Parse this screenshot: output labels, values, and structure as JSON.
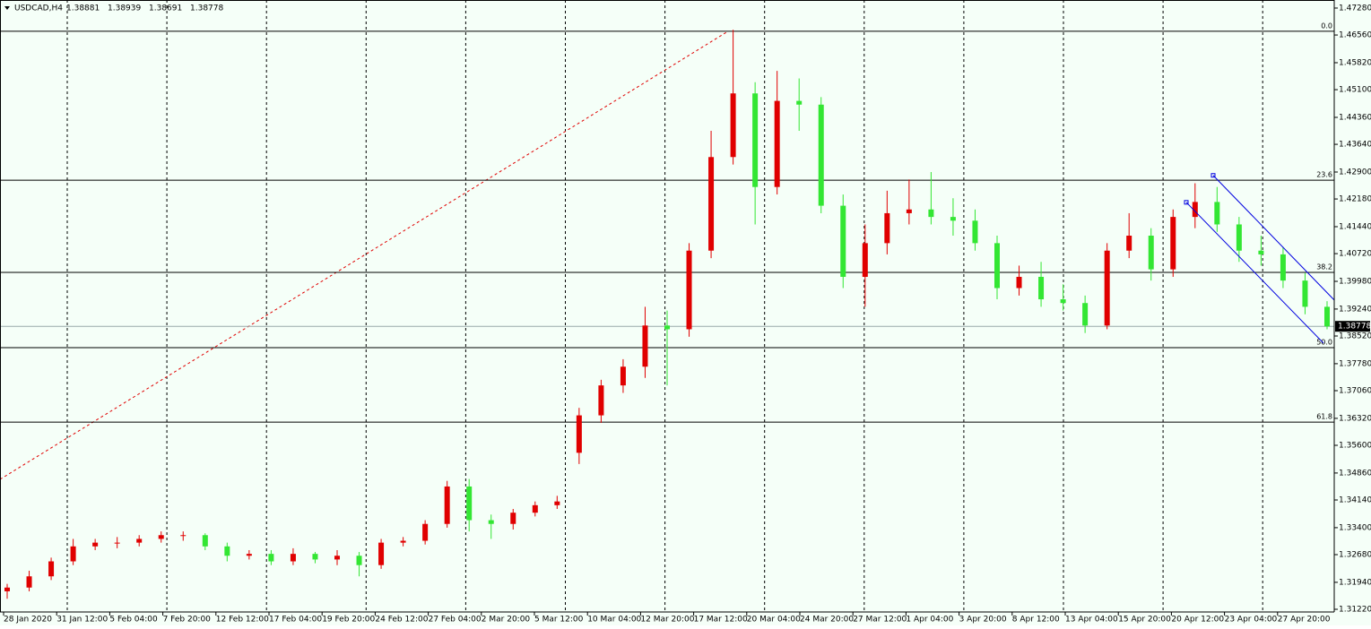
{
  "chart_data": {
    "type": "candlestick",
    "symbol": "USDCAD,H4",
    "info_values": [
      1.38881,
      1.38939,
      1.38691,
      1.38778
    ],
    "last_price": 1.38778,
    "up_color": "#e00000",
    "down_color": "#33e633",
    "ylim": [
      1.31148,
      1.47495
    ],
    "yticks": [
      {
        "value": 1.4728,
        "label": "1.47280"
      },
      {
        "value": 1.4656,
        "label": "1.46560"
      },
      {
        "value": 1.4582,
        "label": "1.45820"
      },
      {
        "value": 1.451,
        "label": "1.45100"
      },
      {
        "value": 1.4436,
        "label": "1.44360"
      },
      {
        "value": 1.4364,
        "label": "1.43640"
      },
      {
        "value": 1.429,
        "label": "1.42900"
      },
      {
        "value": 1.4218,
        "label": "1.42180"
      },
      {
        "value": 1.4144,
        "label": "1.41440"
      },
      {
        "value": 1.4072,
        "label": "1.40720"
      },
      {
        "value": 1.3998,
        "label": "1.39980"
      },
      {
        "value": 1.3924,
        "label": "1.39240"
      },
      {
        "value": 1.3852,
        "label": "1.38520"
      },
      {
        "value": 1.3778,
        "label": "1.37780"
      },
      {
        "value": 1.3706,
        "label": "1.37060"
      },
      {
        "value": 1.3632,
        "label": "1.36320"
      },
      {
        "value": 1.356,
        "label": "1.35600"
      },
      {
        "value": 1.3486,
        "label": "1.34860"
      },
      {
        "value": 1.3414,
        "label": "1.34140"
      },
      {
        "value": 1.334,
        "label": "1.33400"
      },
      {
        "value": 1.3268,
        "label": "1.32680"
      },
      {
        "value": 1.3194,
        "label": "1.31940"
      },
      {
        "value": 1.3122,
        "label": "1.31220"
      }
    ],
    "time_labels": [
      "28 Jan 2020",
      "31 Jan 12:00",
      "5 Feb 04:00",
      "7 Feb 20:00",
      "12 Feb 12:00",
      "17 Feb 04:00",
      "19 Feb 20:00",
      "24 Feb 12:00",
      "27 Feb 04:00",
      "2 Mar 20:00",
      "5 Mar 12:00",
      "10 Mar 04:00",
      "12 Mar 20:00",
      "17 Mar 12:00",
      "20 Mar 04:00",
      "24 Mar 20:00",
      "27 Mar 12:00",
      "1 Apr 04:00",
      "3 Apr 20:00",
      "8 Apr 12:00",
      "13 Apr 04:00",
      "15 Apr 20:00",
      "20 Apr 12:00",
      "23 Apr 04:00",
      "27 Apr 20:00"
    ],
    "open": [
      1.317,
      1.318,
      1.321,
      1.325,
      1.329,
      1.33,
      1.33,
      1.331,
      1.332,
      1.332,
      1.329,
      1.3265,
      1.327,
      1.325,
      1.327,
      1.3255,
      1.3265,
      1.324,
      1.33,
      1.3305,
      1.335,
      1.345,
      1.336,
      1.335,
      1.338,
      1.34,
      1.354,
      1.364,
      1.372,
      1.377,
      1.388,
      1.387,
      1.408,
      1.433,
      1.45,
      1.425,
      1.448,
      1.447,
      1.42,
      1.401,
      1.41,
      1.418,
      1.419,
      1.417,
      1.416,
      1.41,
      1.398,
      1.401,
      1.395,
      1.394,
      1.388,
      1.408,
      1.412,
      1.403,
      1.417,
      1.421,
      1.415,
      1.408,
      1.407,
      1.4,
      1.393
    ],
    "high": [
      1.319,
      1.3225,
      1.326,
      1.331,
      1.331,
      1.3315,
      1.332,
      1.333,
      1.333,
      1.3325,
      1.33,
      1.328,
      1.328,
      1.3285,
      1.3275,
      1.328,
      1.3275,
      1.331,
      1.3315,
      1.336,
      1.3465,
      1.347,
      1.3375,
      1.339,
      1.341,
      1.3425,
      1.366,
      1.3735,
      1.379,
      1.393,
      1.392,
      1.41,
      1.44,
      1.467,
      1.453,
      1.456,
      1.454,
      1.449,
      1.423,
      1.415,
      1.424,
      1.427,
      1.429,
      1.422,
      1.419,
      1.412,
      1.404,
      1.405,
      1.399,
      1.396,
      1.41,
      1.418,
      1.414,
      1.419,
      1.426,
      1.425,
      1.417,
      1.412,
      1.409,
      1.402,
      1.3945
    ],
    "low": [
      1.315,
      1.317,
      1.32,
      1.324,
      1.328,
      1.3285,
      1.329,
      1.33,
      1.3305,
      1.328,
      1.325,
      1.3255,
      1.324,
      1.324,
      1.3245,
      1.324,
      1.321,
      1.323,
      1.329,
      1.3295,
      1.334,
      1.333,
      1.331,
      1.3335,
      1.337,
      1.339,
      1.351,
      1.362,
      1.37,
      1.374,
      1.372,
      1.385,
      1.406,
      1.431,
      1.415,
      1.423,
      1.44,
      1.418,
      1.398,
      1.393,
      1.407,
      1.415,
      1.415,
      1.412,
      1.408,
      1.395,
      1.396,
      1.393,
      1.392,
      1.386,
      1.387,
      1.406,
      1.4,
      1.401,
      1.414,
      1.413,
      1.405,
      1.404,
      1.398,
      1.391,
      1.387
    ],
    "close": [
      1.318,
      1.321,
      1.325,
      1.329,
      1.33,
      1.33,
      1.331,
      1.332,
      1.332,
      1.329,
      1.3265,
      1.327,
      1.325,
      1.327,
      1.3255,
      1.3265,
      1.324,
      1.33,
      1.3305,
      1.335,
      1.345,
      1.336,
      1.335,
      1.338,
      1.34,
      1.341,
      1.364,
      1.372,
      1.377,
      1.388,
      1.387,
      1.408,
      1.433,
      1.45,
      1.425,
      1.448,
      1.447,
      1.42,
      1.401,
      1.41,
      1.418,
      1.419,
      1.417,
      1.416,
      1.41,
      1.398,
      1.401,
      1.395,
      1.394,
      1.388,
      1.408,
      1.412,
      1.403,
      1.417,
      1.421,
      1.415,
      1.408,
      1.407,
      1.4,
      1.393,
      1.38778
    ],
    "fibo_line": [
      1.3469,
      1.4666
    ],
    "fibo_levels": [
      {
        "value": 1.4666,
        "label": "0.0"
      },
      {
        "value": 1.4268,
        "label": "23.6"
      },
      {
        "value": 1.4022,
        "label": "38.2"
      },
      {
        "value": 1.3821,
        "label": "50.0"
      },
      {
        "value": 1.3622,
        "label": "61.8"
      }
    ],
    "channel_upper": [
      1.4281,
      1.3948
    ],
    "channel_lower": [
      1.4209,
      1.3833
    ]
  }
}
